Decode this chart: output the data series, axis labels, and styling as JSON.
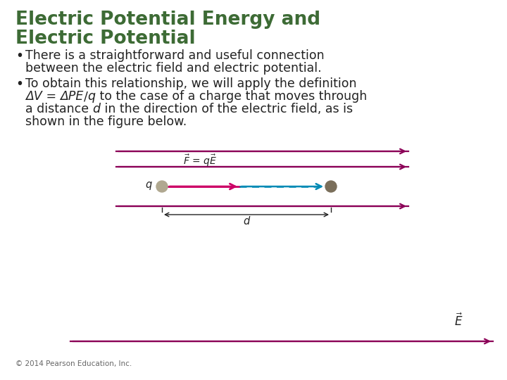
{
  "title_line1": "Electric Potential Energy and",
  "title_line2": "Electric Potential",
  "title_color": "#3d6b35",
  "title_fontsize": 19,
  "bullet1_line1": "There is a straightforward and useful connection",
  "bullet1_line2": "between the electric field and electric potential.",
  "bullet2_line1": "To obtain this relationship, we will apply the definition",
  "bullet2_line2_plain1": " = ",
  "bullet2_line2_rest": " to the case of a charge that moves through",
  "bullet2_line3_plain1": "a distance ",
  "bullet2_line3_rest": " in the direction of the electric field, as is",
  "bullet2_line4": "shown in the figure below.",
  "text_color": "#222222",
  "text_fontsize": 12.5,
  "background_color": "#ffffff",
  "line_color": "#8b0057",
  "arrow_color_pink": "#cc0066",
  "arrow_color_cyan": "#008ab5",
  "dot_color_left": "#b0a890",
  "dot_color_right": "#7a6e5a",
  "copyright": "© 2014 Pearson Education, Inc.",
  "copyright_fontsize": 7.5
}
